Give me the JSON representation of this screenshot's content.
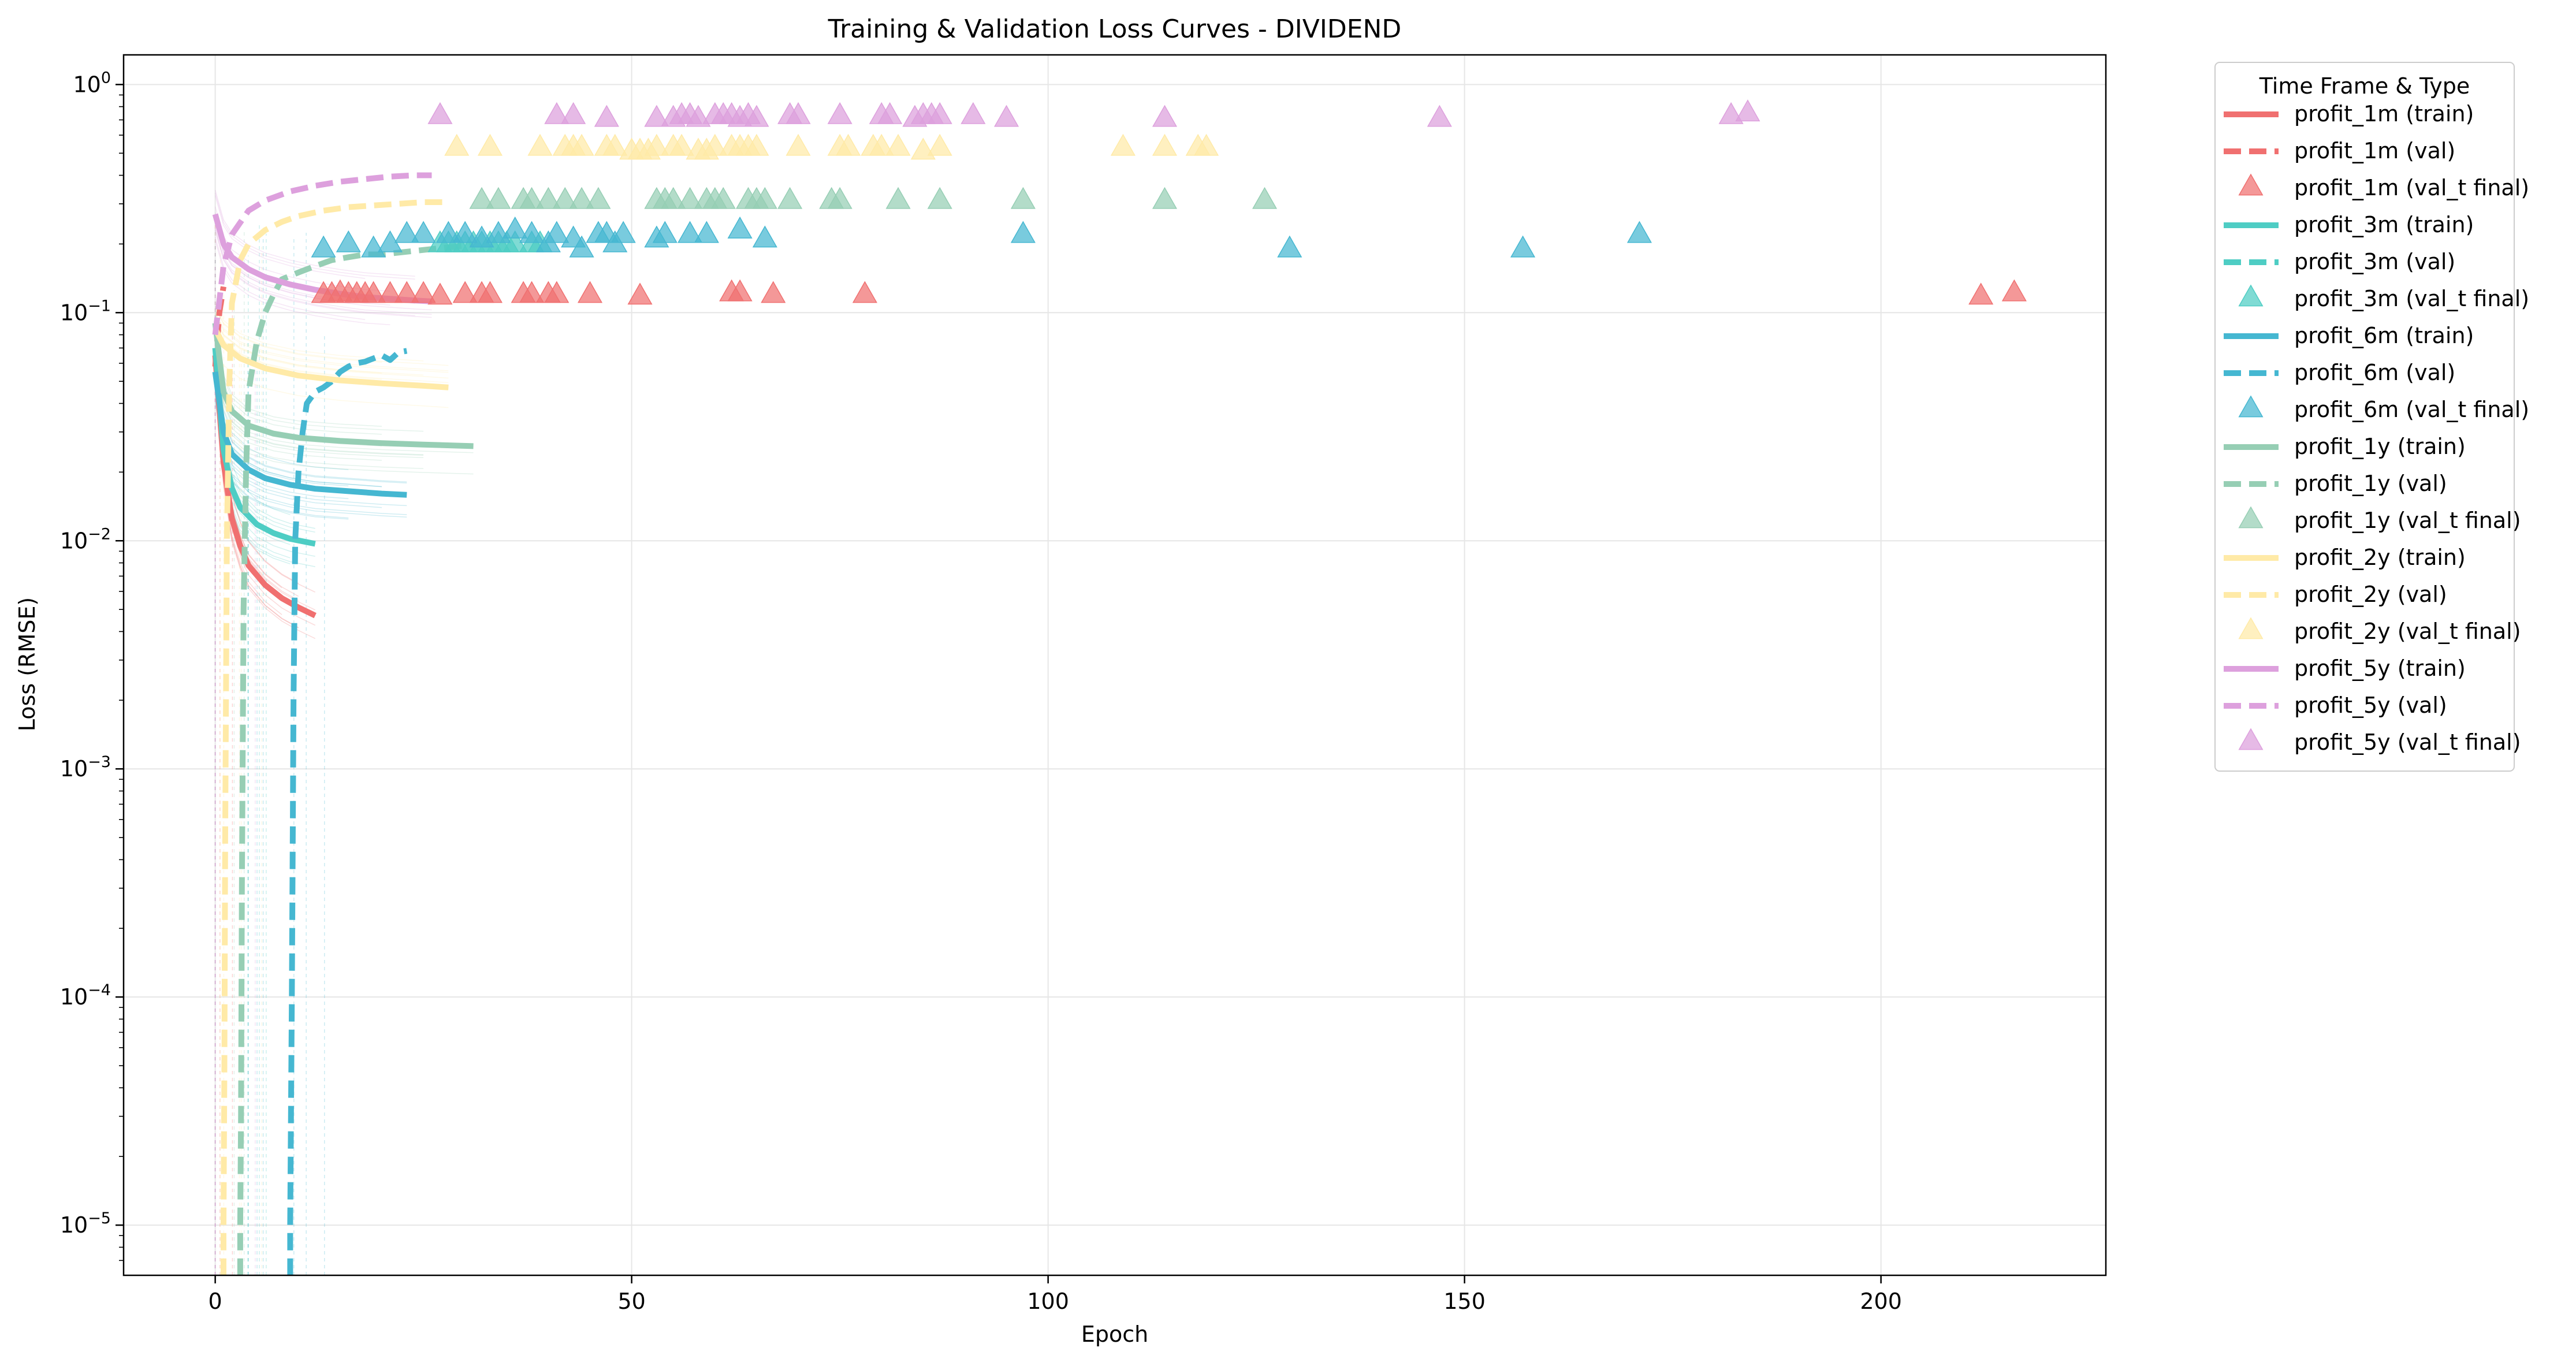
{
  "chart_data": {
    "type": "line",
    "title": "Training & Validation Loss Curves - DIVIDEND",
    "xlabel": "Epoch",
    "ylabel": "Loss (RMSE)",
    "xlim": [
      -11,
      227
    ],
    "ylim_log10": [
      -5.22,
      0.13
    ],
    "y_scale": "log",
    "grid": true,
    "x_ticks": [
      0,
      50,
      100,
      150,
      200
    ],
    "y_ticks": [
      {
        "base": "10",
        "exp": "−5",
        "log10": -5
      },
      {
        "base": "10",
        "exp": "−4",
        "log10": -4
      },
      {
        "base": "10",
        "exp": "−3",
        "log10": -3
      },
      {
        "base": "10",
        "exp": "−2",
        "log10": -2
      },
      {
        "base": "10",
        "exp": "−1",
        "log10": -1
      },
      {
        "base": "10",
        "exp": "0",
        "log10": 0
      }
    ],
    "legend": {
      "title": "Time Frame & Type",
      "placement": "outside-upper-right"
    },
    "series": [
      {
        "key": "1m",
        "color": "#f07070",
        "train_name": "profit_1m (train)",
        "val_name": "profit_1m (val)",
        "final_name": "profit_1m (val_t final)",
        "train": [
          [
            0,
            0.065
          ],
          [
            1,
            0.022
          ],
          [
            2,
            0.0125
          ],
          [
            3,
            0.0095
          ],
          [
            4,
            0.0078
          ],
          [
            6,
            0.0064
          ],
          [
            8,
            0.0056
          ],
          [
            10,
            0.0051
          ],
          [
            12,
            0.0047
          ]
        ],
        "val": [
          [
            0,
            0.058
          ],
          [
            0.5,
            0.1
          ],
          [
            1,
            0.13
          ]
        ],
        "final": [
          [
            13,
            0.12
          ],
          [
            14,
            0.12
          ],
          [
            15,
            0.122
          ],
          [
            16,
            0.12
          ],
          [
            17,
            0.12
          ],
          [
            18,
            0.12
          ],
          [
            19,
            0.12
          ],
          [
            21,
            0.12
          ],
          [
            23,
            0.12
          ],
          [
            25,
            0.12
          ],
          [
            27,
            0.118
          ],
          [
            30,
            0.12
          ],
          [
            32,
            0.12
          ],
          [
            33,
            0.12
          ],
          [
            37,
            0.12
          ],
          [
            38,
            0.12
          ],
          [
            40,
            0.12
          ],
          [
            41,
            0.12
          ],
          [
            45,
            0.12
          ],
          [
            51,
            0.118
          ],
          [
            62,
            0.122
          ],
          [
            63,
            0.122
          ],
          [
            67,
            0.12
          ],
          [
            78,
            0.12
          ],
          [
            212,
            0.118
          ],
          [
            216,
            0.122
          ]
        ]
      },
      {
        "key": "3m",
        "color": "#4ecdc4",
        "train_name": "profit_3m (train)",
        "val_name": "profit_3m (val)",
        "final_name": "profit_3m (val_t final)",
        "train": [
          [
            0,
            0.07
          ],
          [
            1,
            0.025
          ],
          [
            2,
            0.017
          ],
          [
            3,
            0.014
          ],
          [
            5,
            0.0118
          ],
          [
            7,
            0.0108
          ],
          [
            9,
            0.0102
          ],
          [
            12,
            0.0097
          ]
        ],
        "val": [],
        "final": [
          [
            27,
            0.2
          ],
          [
            28,
            0.2
          ],
          [
            29,
            0.2
          ],
          [
            30,
            0.2
          ],
          [
            31,
            0.2
          ],
          [
            32,
            0.2
          ],
          [
            33,
            0.2
          ],
          [
            34,
            0.2
          ],
          [
            35,
            0.2
          ],
          [
            36,
            0.2
          ],
          [
            38,
            0.2
          ],
          [
            39,
            0.2
          ]
        ]
      },
      {
        "key": "6m",
        "color": "#45b7d1",
        "train_name": "profit_6m (train)",
        "val_name": "profit_6m (val)",
        "final_name": "profit_6m (val_t final)",
        "train": [
          [
            0,
            0.055
          ],
          [
            1,
            0.03
          ],
          [
            2,
            0.024
          ],
          [
            4,
            0.0205
          ],
          [
            6,
            0.0188
          ],
          [
            9,
            0.0176
          ],
          [
            12,
            0.0169
          ],
          [
            16,
            0.0165
          ],
          [
            20,
            0.0161
          ],
          [
            23,
            0.0159
          ]
        ],
        "val": [
          [
            9,
            6e-06
          ],
          [
            9,
            1e-05
          ],
          [
            9.2,
            0.0001
          ],
          [
            9.4,
            0.002
          ],
          [
            9.6,
            0.01
          ],
          [
            10,
            0.02
          ],
          [
            10.5,
            0.03
          ],
          [
            11,
            0.04
          ],
          [
            12,
            0.045
          ],
          [
            13,
            0.047
          ],
          [
            14,
            0.05
          ],
          [
            15,
            0.055
          ],
          [
            16,
            0.058
          ],
          [
            17,
            0.06
          ],
          [
            18,
            0.061
          ],
          [
            19,
            0.063
          ],
          [
            20,
            0.065
          ],
          [
            21,
            0.062
          ],
          [
            22,
            0.067
          ],
          [
            23,
            0.068
          ]
        ],
        "final": [
          [
            13,
            0.19
          ],
          [
            16,
            0.2
          ],
          [
            19,
            0.19
          ],
          [
            21,
            0.2
          ],
          [
            23,
            0.22
          ],
          [
            25,
            0.22
          ],
          [
            28,
            0.22
          ],
          [
            30,
            0.22
          ],
          [
            32,
            0.21
          ],
          [
            34,
            0.22
          ],
          [
            36,
            0.23
          ],
          [
            38,
            0.22
          ],
          [
            40,
            0.2
          ],
          [
            41,
            0.22
          ],
          [
            43,
            0.21
          ],
          [
            44,
            0.19
          ],
          [
            46,
            0.22
          ],
          [
            47,
            0.22
          ],
          [
            48,
            0.2
          ],
          [
            49,
            0.22
          ],
          [
            53,
            0.21
          ],
          [
            54,
            0.22
          ],
          [
            57,
            0.22
          ],
          [
            59,
            0.22
          ],
          [
            63,
            0.23
          ],
          [
            66,
            0.21
          ],
          [
            97,
            0.22
          ],
          [
            129,
            0.19
          ],
          [
            157,
            0.19
          ],
          [
            171,
            0.22
          ]
        ]
      },
      {
        "key": "1y",
        "color": "#96ceb4",
        "train_name": "profit_1y (train)",
        "val_name": "profit_1y (val)",
        "final_name": "profit_1y (val_t final)",
        "train": [
          [
            0,
            0.09
          ],
          [
            1,
            0.045
          ],
          [
            2,
            0.037
          ],
          [
            4,
            0.032
          ],
          [
            7,
            0.0295
          ],
          [
            10,
            0.0283
          ],
          [
            15,
            0.0274
          ],
          [
            20,
            0.0268
          ],
          [
            25,
            0.0264
          ],
          [
            31,
            0.026
          ]
        ],
        "val": [
          [
            3,
            6e-06
          ],
          [
            3,
            1e-05
          ],
          [
            3.1,
            3e-05
          ],
          [
            3.2,
            0.0003
          ],
          [
            3.4,
            0.005
          ],
          [
            3.7,
            0.02
          ],
          [
            4,
            0.045
          ],
          [
            5,
            0.075
          ],
          [
            6,
            0.1
          ],
          [
            7,
            0.12
          ],
          [
            8,
            0.14
          ],
          [
            10,
            0.15
          ],
          [
            12,
            0.16
          ],
          [
            14,
            0.17
          ],
          [
            16,
            0.175
          ],
          [
            18,
            0.18
          ],
          [
            20,
            0.18
          ],
          [
            23,
            0.185
          ],
          [
            26,
            0.19
          ],
          [
            29,
            0.195
          ],
          [
            31,
            0.2
          ]
        ],
        "final": [
          [
            32,
            0.31
          ],
          [
            34,
            0.31
          ],
          [
            37,
            0.31
          ],
          [
            38,
            0.31
          ],
          [
            40,
            0.31
          ],
          [
            42,
            0.31
          ],
          [
            44,
            0.31
          ],
          [
            46,
            0.31
          ],
          [
            53,
            0.31
          ],
          [
            54,
            0.31
          ],
          [
            55,
            0.31
          ],
          [
            57,
            0.31
          ],
          [
            59,
            0.31
          ],
          [
            60,
            0.31
          ],
          [
            61,
            0.31
          ],
          [
            64,
            0.31
          ],
          [
            65,
            0.31
          ],
          [
            66,
            0.31
          ],
          [
            69,
            0.31
          ],
          [
            74,
            0.31
          ],
          [
            75,
            0.31
          ],
          [
            82,
            0.31
          ],
          [
            87,
            0.31
          ],
          [
            97,
            0.31
          ],
          [
            114,
            0.31
          ],
          [
            126,
            0.31
          ]
        ]
      },
      {
        "key": "2y",
        "color": "#ffeaa7",
        "train_name": "profit_2y (train)",
        "val_name": "profit_2y (val)",
        "final_name": "profit_2y (val_t final)",
        "train": [
          [
            0,
            0.085
          ],
          [
            1,
            0.072
          ],
          [
            3,
            0.063
          ],
          [
            6,
            0.057
          ],
          [
            10,
            0.053
          ],
          [
            15,
            0.0505
          ],
          [
            20,
            0.049
          ],
          [
            25,
            0.0478
          ],
          [
            28,
            0.047
          ]
        ],
        "val": [
          [
            1,
            6e-06
          ],
          [
            1,
            1e-05
          ],
          [
            1.1,
            5e-05
          ],
          [
            1.2,
            0.0005
          ],
          [
            1.4,
            0.01
          ],
          [
            1.7,
            0.05
          ],
          [
            2,
            0.11
          ],
          [
            3,
            0.17
          ],
          [
            4,
            0.2
          ],
          [
            6,
            0.23
          ],
          [
            8,
            0.25
          ],
          [
            10,
            0.265
          ],
          [
            13,
            0.28
          ],
          [
            16,
            0.29
          ],
          [
            19,
            0.295
          ],
          [
            22,
            0.3
          ],
          [
            25,
            0.305
          ],
          [
            28,
            0.305
          ]
        ],
        "final": [
          [
            29,
            0.53
          ],
          [
            33,
            0.53
          ],
          [
            39,
            0.53
          ],
          [
            42,
            0.53
          ],
          [
            43,
            0.53
          ],
          [
            44,
            0.53
          ],
          [
            47,
            0.53
          ],
          [
            48,
            0.53
          ],
          [
            50,
            0.51
          ],
          [
            51,
            0.51
          ],
          [
            52,
            0.51
          ],
          [
            53,
            0.53
          ],
          [
            55,
            0.53
          ],
          [
            56,
            0.53
          ],
          [
            58,
            0.51
          ],
          [
            59,
            0.51
          ],
          [
            60,
            0.53
          ],
          [
            62,
            0.53
          ],
          [
            63,
            0.53
          ],
          [
            64,
            0.53
          ],
          [
            65,
            0.53
          ],
          [
            70,
            0.53
          ],
          [
            75,
            0.53
          ],
          [
            76,
            0.53
          ],
          [
            79,
            0.53
          ],
          [
            80,
            0.53
          ],
          [
            82,
            0.53
          ],
          [
            85,
            0.51
          ],
          [
            87,
            0.53
          ],
          [
            109,
            0.53
          ],
          [
            114,
            0.53
          ],
          [
            118,
            0.53
          ],
          [
            119,
            0.53
          ]
        ]
      },
      {
        "key": "5y",
        "color": "#dda0dd",
        "train_name": "profit_5y (train)",
        "val_name": "profit_5y (val)",
        "final_name": "profit_5y (val_t final)",
        "train": [
          [
            0,
            0.27
          ],
          [
            1,
            0.2
          ],
          [
            2,
            0.175
          ],
          [
            4,
            0.155
          ],
          [
            6,
            0.143
          ],
          [
            9,
            0.133
          ],
          [
            12,
            0.126
          ],
          [
            15,
            0.121
          ],
          [
            18,
            0.117
          ],
          [
            21,
            0.115
          ],
          [
            24,
            0.113
          ],
          [
            26,
            0.112
          ]
        ],
        "val": [
          [
            0,
            0.08
          ],
          [
            1,
            0.16
          ],
          [
            2,
            0.22
          ],
          [
            4,
            0.28
          ],
          [
            6,
            0.31
          ],
          [
            9,
            0.34
          ],
          [
            12,
            0.36
          ],
          [
            15,
            0.375
          ],
          [
            18,
            0.385
          ],
          [
            21,
            0.395
          ],
          [
            24,
            0.4
          ],
          [
            26,
            0.4
          ]
        ],
        "final": [
          [
            27,
            0.73
          ],
          [
            41,
            0.73
          ],
          [
            43,
            0.73
          ],
          [
            47,
            0.71
          ],
          [
            53,
            0.71
          ],
          [
            55,
            0.71
          ],
          [
            56,
            0.73
          ],
          [
            57,
            0.73
          ],
          [
            58,
            0.71
          ],
          [
            60,
            0.73
          ],
          [
            61,
            0.73
          ],
          [
            62,
            0.73
          ],
          [
            63,
            0.71
          ],
          [
            64,
            0.73
          ],
          [
            65,
            0.71
          ],
          [
            69,
            0.73
          ],
          [
            70,
            0.73
          ],
          [
            75,
            0.73
          ],
          [
            80,
            0.73
          ],
          [
            81,
            0.73
          ],
          [
            84,
            0.71
          ],
          [
            85,
            0.73
          ],
          [
            86,
            0.73
          ],
          [
            87,
            0.73
          ],
          [
            91,
            0.73
          ],
          [
            95,
            0.71
          ],
          [
            114,
            0.71
          ],
          [
            147,
            0.71
          ],
          [
            182,
            0.73
          ],
          [
            184,
            0.75
          ]
        ]
      }
    ]
  }
}
